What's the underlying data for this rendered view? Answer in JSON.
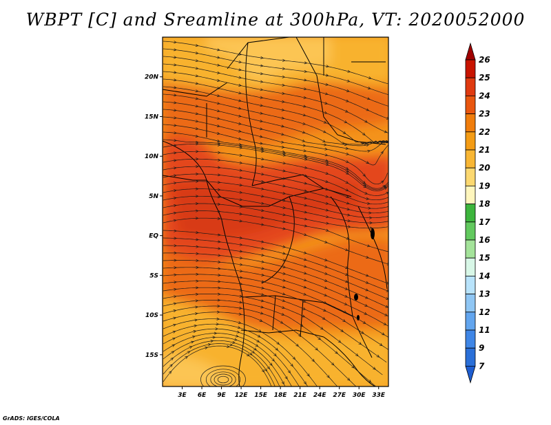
{
  "title": "WBPT [C] and Sreamline at 300hPa, VT: 2020052000",
  "variable": "wet-bulb potential temperature",
  "level": "300hPa",
  "lat_labels": [
    "20N",
    "15N",
    "10N",
    "5N",
    "EQ",
    "5S",
    "10S",
    "15S"
  ],
  "lat_values": [
    20,
    15,
    10,
    5,
    0,
    -5,
    -10,
    -15
  ],
  "lon_labels": [
    "3E",
    "6E",
    "9E",
    "12E",
    "15E",
    "18E",
    "21E",
    "24E",
    "27E",
    "30E",
    "33E"
  ],
  "lon_values": [
    3,
    6,
    9,
    12,
    15,
    18,
    21,
    24,
    27,
    30,
    33
  ],
  "extent": {
    "lon": [
      0,
      34.5
    ],
    "lat": [
      -19,
      25
    ]
  },
  "colorbar": {
    "labels": [
      "26",
      "25",
      "24",
      "23",
      "22",
      "21",
      "20",
      "19",
      "18",
      "17",
      "16",
      "15",
      "14",
      "13",
      "12",
      "11",
      "9",
      "7"
    ],
    "colors": [
      "#a00000",
      "#c81400",
      "#e03a10",
      "#e9560f",
      "#f07d0c",
      "#f49c15",
      "#f8b634",
      "#fcd870",
      "#fff6bd",
      "#3db53d",
      "#62c95e",
      "#a4e39a",
      "#d8f7e7",
      "#b8e3fb",
      "#8fc6f4",
      "#62a5ee",
      "#3f86e6",
      "#2a6fd8",
      "#1e5dd0"
    ]
  },
  "colors": {
    "field_warm": "#f4931b",
    "field_warmer": "#ec6a12",
    "field_hot": "#e4461a",
    "field_cool": "#f8b22d",
    "field_coolest": "#fcc552",
    "streamline": "#1a1a1a",
    "border": "#000000"
  },
  "credit": "GrADS: IGES/COLA"
}
